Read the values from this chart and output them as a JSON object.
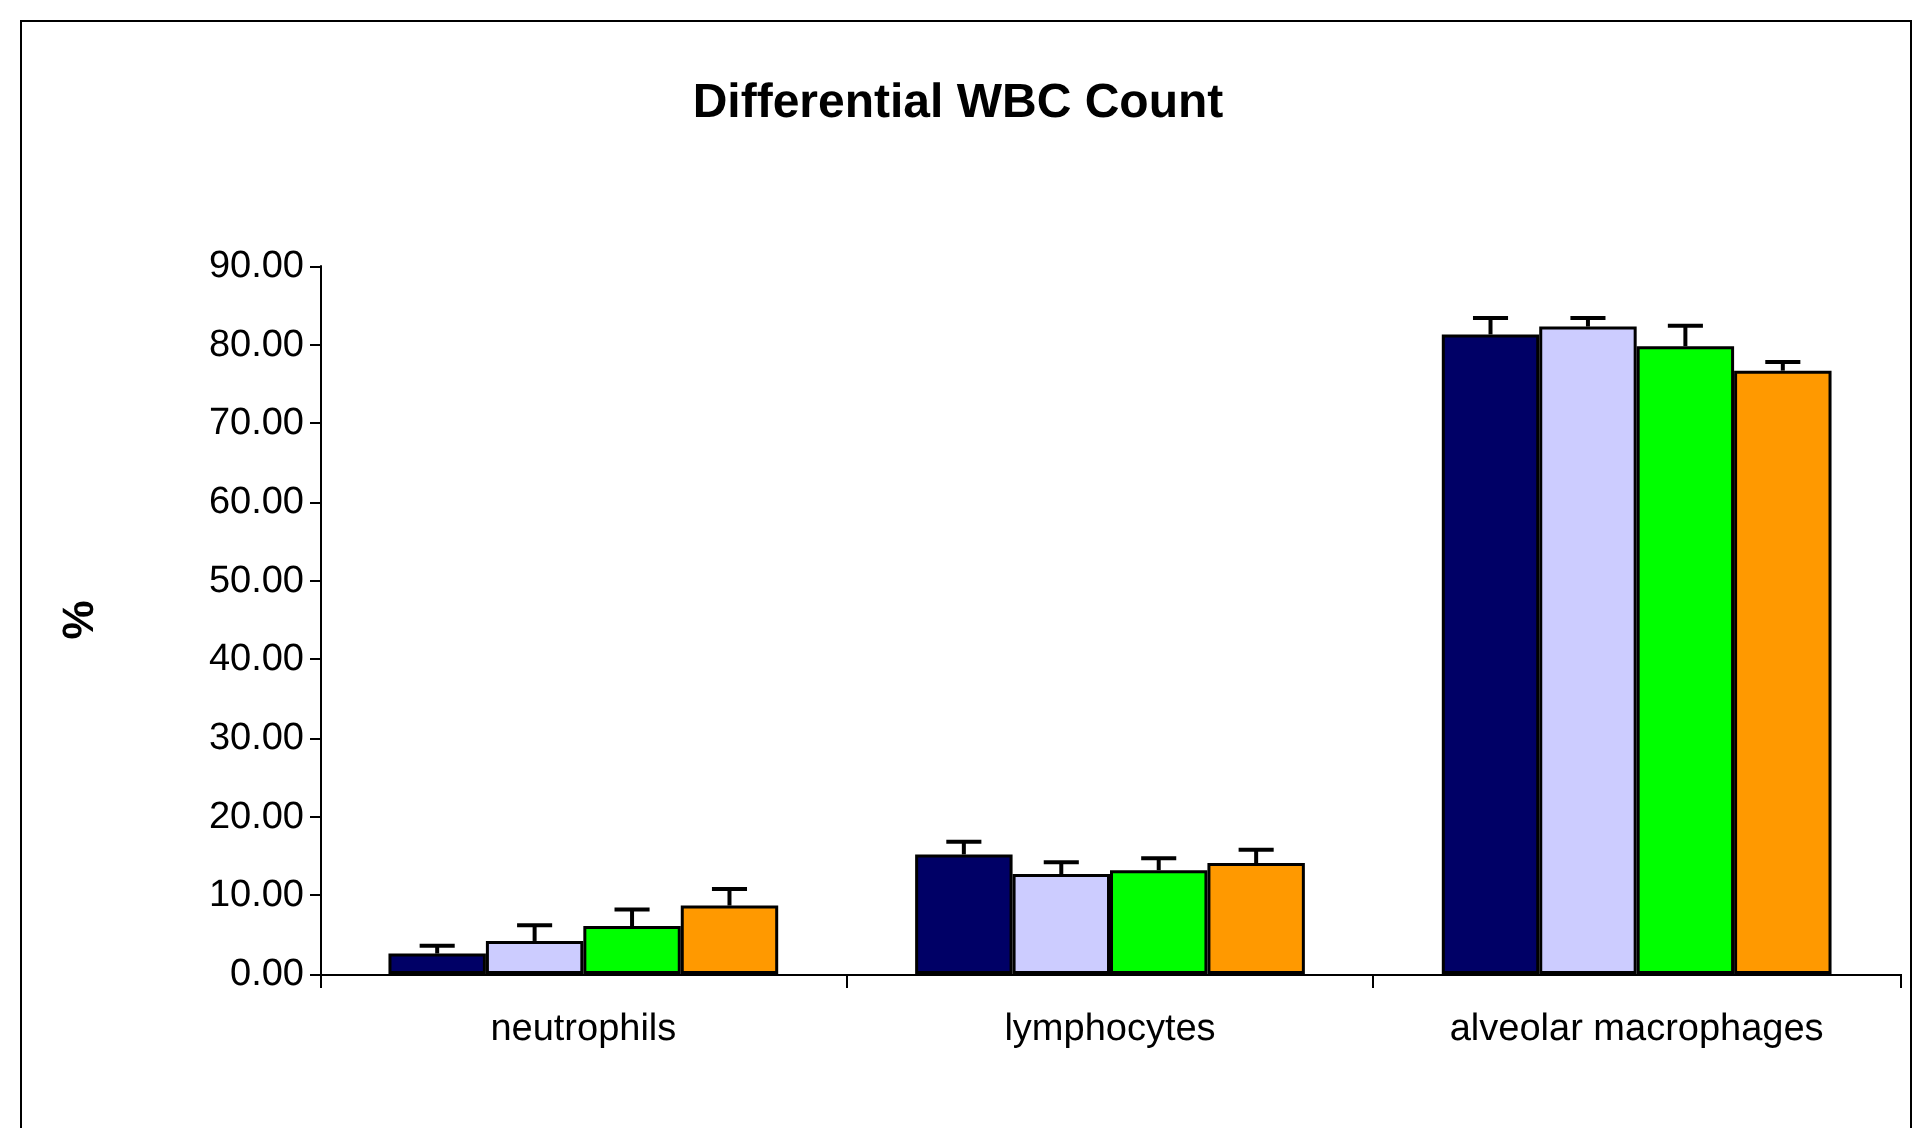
{
  "chart_data": {
    "type": "bar",
    "title": "Differential WBC Count",
    "ylabel": "%",
    "categories": [
      "neutrophils",
      "lymphocytes",
      "alveolar macrophages"
    ],
    "series": [
      {
        "color": "#000066",
        "values": [
          2.6,
          15.2,
          81.3
        ],
        "errors": [
          [
            2.6,
            3.6
          ],
          [
            15.2,
            16.8
          ],
          [
            81.3,
            83.4
          ]
        ]
      },
      {
        "color": "#ccccff",
        "values": [
          4.2,
          12.7,
          82.3
        ],
        "errors": [
          [
            4.2,
            6.2
          ],
          [
            12.7,
            14.2
          ],
          [
            82.3,
            83.4
          ]
        ]
      },
      {
        "color": "#00ff00",
        "values": [
          6.1,
          13.2,
          79.8
        ],
        "errors": [
          [
            6.1,
            8.2
          ],
          [
            13.2,
            14.7
          ],
          [
            79.8,
            82.4
          ]
        ]
      },
      {
        "color": "#ff9900",
        "values": [
          8.7,
          14.1,
          76.7
        ],
        "errors": [
          [
            8.7,
            10.8
          ],
          [
            14.1,
            15.8
          ],
          [
            76.7,
            77.8
          ]
        ]
      }
    ],
    "ylim": [
      0,
      90
    ],
    "yticks": [
      {
        "value": 0,
        "label": "0.00"
      },
      {
        "value": 10,
        "label": "10.00"
      },
      {
        "value": 20,
        "label": "20.00"
      },
      {
        "value": 30,
        "label": "30.00"
      },
      {
        "value": 40,
        "label": "40.00"
      },
      {
        "value": 50,
        "label": "50.00"
      },
      {
        "value": 60,
        "label": "60.00"
      },
      {
        "value": 70,
        "label": "70.00"
      },
      {
        "value": 80,
        "label": "80.00"
      },
      {
        "value": 90,
        "label": "90.00"
      }
    ],
    "grid": false
  }
}
